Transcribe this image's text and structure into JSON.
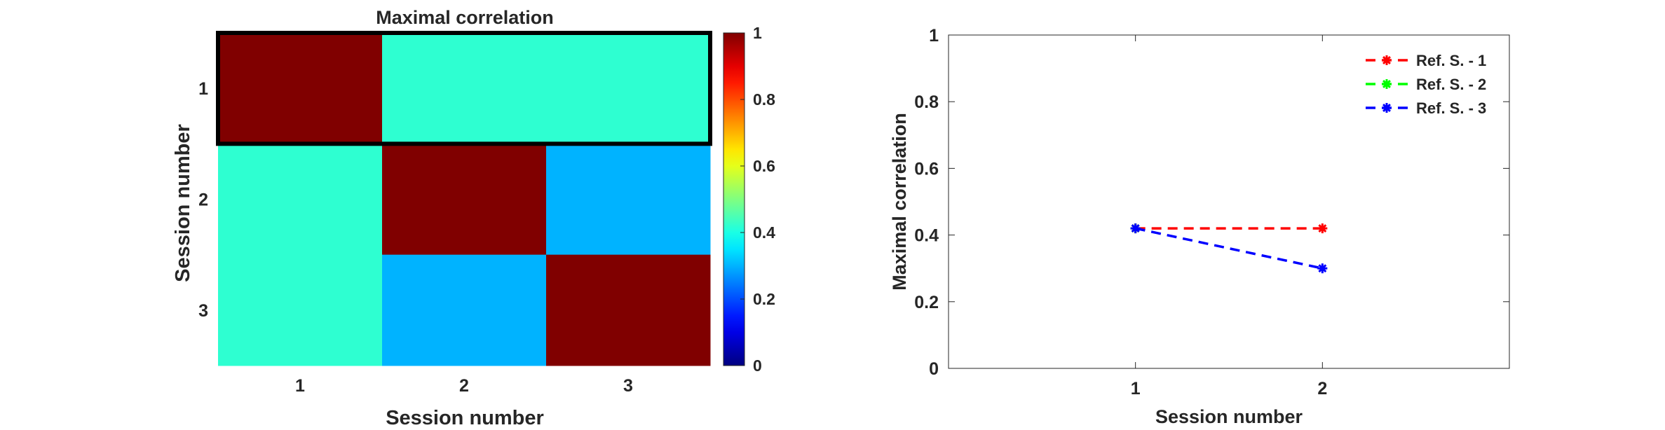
{
  "chart_data": [
    {
      "type": "heatmap",
      "title": "Maximal correlation",
      "xlabel": "Session number",
      "ylabel": "Session number",
      "x_categories": [
        "1",
        "2",
        "3"
      ],
      "y_categories": [
        "1",
        "2",
        "3"
      ],
      "values": [
        [
          1.0,
          0.42,
          0.42
        ],
        [
          0.42,
          1.0,
          0.3
        ],
        [
          0.42,
          0.3,
          1.0
        ]
      ],
      "highlighted_row": "1",
      "highlight_color": "#000000",
      "colormap": "jet",
      "colorbar": {
        "range": [
          0,
          1
        ],
        "ticks": [
          "0",
          "0.2",
          "0.4",
          "0.6",
          "0.8",
          "1"
        ]
      }
    },
    {
      "type": "line",
      "title": "",
      "xlabel": "Session number",
      "ylabel": "Maximal correlation",
      "xlim": [
        0,
        3
      ],
      "ylim": [
        0,
        1
      ],
      "x_ticks": [
        "1",
        "2"
      ],
      "y_ticks": [
        "0",
        "0.2",
        "0.4",
        "0.6",
        "0.8",
        "1"
      ],
      "legend_position": "top-right",
      "series": [
        {
          "name": "Ref. S. - 1",
          "color": "#ff0000",
          "marker": "asterisk",
          "line_style": "dashed",
          "x": [
            1,
            2
          ],
          "y": [
            0.42,
            0.42
          ]
        },
        {
          "name": "Ref. S. - 2",
          "color": "#00ff00",
          "marker": "asterisk",
          "line_style": "dashed",
          "x": [
            1
          ],
          "y": [
            0.42
          ]
        },
        {
          "name": "Ref. S. - 3",
          "color": "#0000ff",
          "marker": "asterisk",
          "line_style": "dashed",
          "x": [
            1,
            2
          ],
          "y": [
            0.42,
            0.3
          ]
        }
      ]
    }
  ]
}
